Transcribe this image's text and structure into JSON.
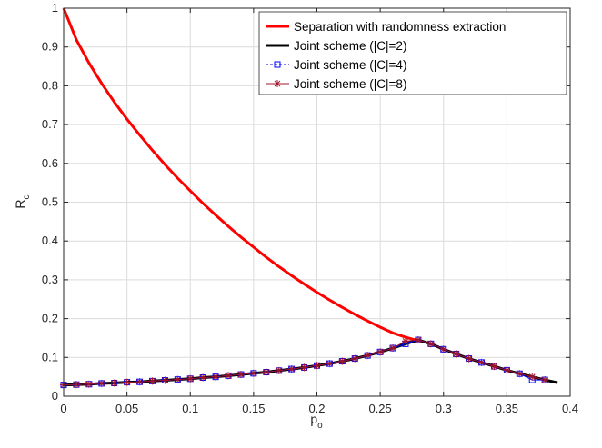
{
  "chart_data": {
    "type": "line",
    "xlabel": {
      "main": "p",
      "sub": "o"
    },
    "ylabel": {
      "main": "R",
      "sub": "c"
    },
    "xlim": [
      0,
      0.4
    ],
    "ylim": [
      0,
      1
    ],
    "xticks": [
      0,
      0.05,
      0.1,
      0.15,
      0.2,
      0.25,
      0.3,
      0.35,
      0.4
    ],
    "xtick_labels": [
      "0",
      "0.05",
      "0.1",
      "0.15",
      "0.2",
      "0.25",
      "0.3",
      "0.35",
      "0.4"
    ],
    "yticks": [
      0,
      0.1,
      0.2,
      0.3,
      0.4,
      0.5,
      0.6,
      0.7,
      0.8,
      0.9,
      1
    ],
    "ytick_labels": [
      "0",
      "0.1",
      "0.2",
      "0.3",
      "0.4",
      "0.5",
      "0.6",
      "0.7",
      "0.8",
      "0.9",
      "1"
    ],
    "grid": true,
    "legend_position": "top-right",
    "series": [
      {
        "name": "Separation with randomness extraction",
        "color": "#ff0000",
        "marker": "none",
        "x": [
          0,
          0.01,
          0.02,
          0.03,
          0.04,
          0.05,
          0.06,
          0.07,
          0.08,
          0.09,
          0.1,
          0.11,
          0.12,
          0.13,
          0.14,
          0.15,
          0.16,
          0.17,
          0.18,
          0.19,
          0.2,
          0.21,
          0.22,
          0.23,
          0.24,
          0.25,
          0.26,
          0.27,
          0.28
        ],
        "y": [
          1,
          0.919,
          0.859,
          0.806,
          0.758,
          0.714,
          0.673,
          0.634,
          0.597,
          0.562,
          0.529,
          0.497,
          0.467,
          0.438,
          0.41,
          0.384,
          0.358,
          0.334,
          0.311,
          0.289,
          0.268,
          0.248,
          0.229,
          0.211,
          0.194,
          0.178,
          0.163,
          0.152,
          0.143
        ]
      },
      {
        "name": "Joint scheme (|C|=2)",
        "color": "#000000",
        "marker": "none",
        "x": [
          0,
          0.01,
          0.02,
          0.03,
          0.04,
          0.05,
          0.06,
          0.07,
          0.08,
          0.09,
          0.1,
          0.11,
          0.12,
          0.13,
          0.14,
          0.15,
          0.16,
          0.17,
          0.18,
          0.19,
          0.2,
          0.21,
          0.22,
          0.23,
          0.24,
          0.25,
          0.26,
          0.27,
          0.28,
          0.29,
          0.3,
          0.31,
          0.32,
          0.33,
          0.34,
          0.35,
          0.36,
          0.37,
          0.38,
          0.39
        ],
        "y": [
          0.029,
          0.03,
          0.031,
          0.033,
          0.034,
          0.036,
          0.037,
          0.039,
          0.041,
          0.043,
          0.045,
          0.048,
          0.05,
          0.053,
          0.056,
          0.059,
          0.062,
          0.066,
          0.07,
          0.074,
          0.079,
          0.084,
          0.09,
          0.097,
          0.105,
          0.114,
          0.124,
          0.135,
          0.145,
          0.135,
          0.121,
          0.109,
          0.097,
          0.087,
          0.077,
          0.067,
          0.058,
          0.05,
          0.042,
          0.035
        ]
      },
      {
        "name": "Joint scheme (|C|=4)",
        "color": "#0000ff",
        "marker": "square",
        "x": [
          0,
          0.01,
          0.02,
          0.03,
          0.04,
          0.05,
          0.06,
          0.07,
          0.08,
          0.09,
          0.1,
          0.11,
          0.12,
          0.13,
          0.14,
          0.15,
          0.16,
          0.17,
          0.18,
          0.19,
          0.2,
          0.21,
          0.22,
          0.23,
          0.24,
          0.25,
          0.26,
          0.27,
          0.28,
          0.29,
          0.3,
          0.31,
          0.32,
          0.33,
          0.34,
          0.35,
          0.36,
          0.37,
          0.38
        ],
        "y": [
          0.029,
          0.03,
          0.031,
          0.033,
          0.034,
          0.036,
          0.037,
          0.039,
          0.041,
          0.043,
          0.045,
          0.048,
          0.05,
          0.053,
          0.056,
          0.059,
          0.062,
          0.066,
          0.07,
          0.074,
          0.079,
          0.084,
          0.09,
          0.097,
          0.105,
          0.114,
          0.124,
          0.135,
          0.145,
          0.135,
          0.121,
          0.109,
          0.097,
          0.087,
          0.077,
          0.067,
          0.058,
          0.042,
          0.042
        ]
      },
      {
        "name": "Joint scheme (|C|=8)",
        "color": "#a2142f",
        "marker": "asterisk",
        "x": [
          0,
          0.01,
          0.02,
          0.03,
          0.04,
          0.05,
          0.06,
          0.07,
          0.08,
          0.09,
          0.1,
          0.11,
          0.12,
          0.13,
          0.14,
          0.15,
          0.16,
          0.17,
          0.18,
          0.19,
          0.2,
          0.21,
          0.22,
          0.23,
          0.24,
          0.25,
          0.26,
          0.27,
          0.28,
          0.29,
          0.3,
          0.31,
          0.32,
          0.33,
          0.34,
          0.35,
          0.36,
          0.37,
          0.38
        ],
        "y": [
          0.029,
          0.03,
          0.031,
          0.033,
          0.034,
          0.036,
          0.037,
          0.039,
          0.041,
          0.043,
          0.045,
          0.048,
          0.05,
          0.053,
          0.056,
          0.059,
          0.062,
          0.066,
          0.07,
          0.074,
          0.079,
          0.084,
          0.09,
          0.097,
          0.105,
          0.114,
          0.124,
          0.142,
          0.145,
          0.135,
          0.121,
          0.109,
          0.097,
          0.087,
          0.077,
          0.067,
          0.058,
          0.05,
          0.042
        ]
      }
    ]
  }
}
